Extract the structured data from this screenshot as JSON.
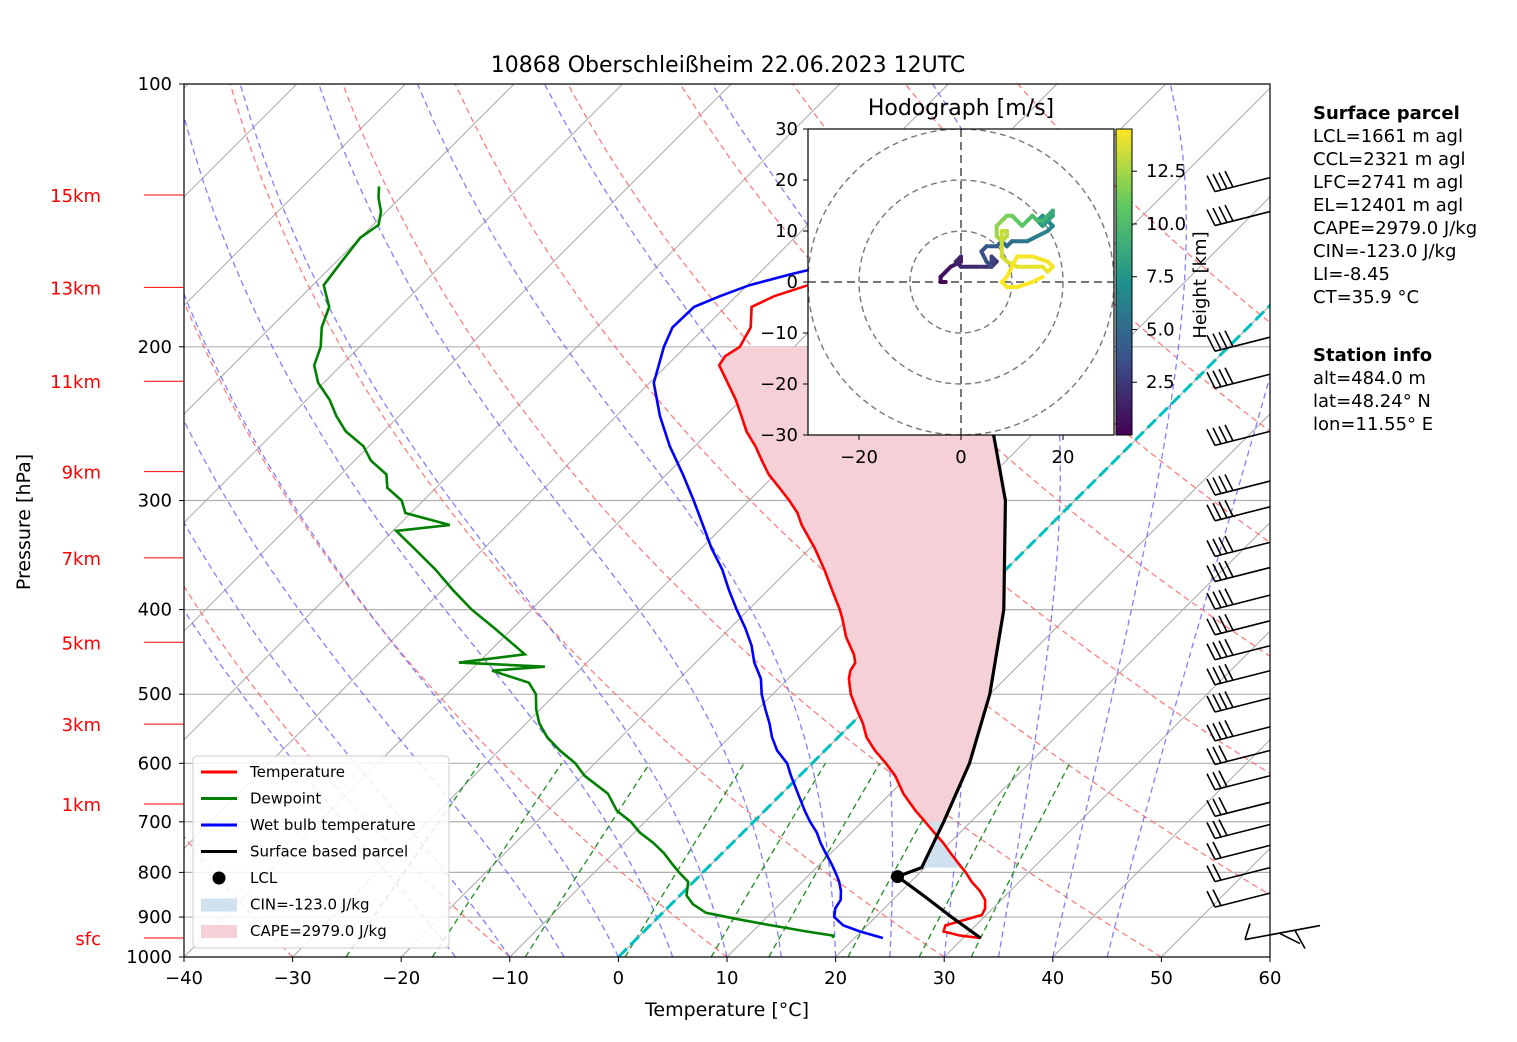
{
  "chart_data": {
    "type": "skew-t",
    "title": "10868 Oberschleißheim 22.06.2023 12UTC",
    "xlabel": "Temperature [°C]",
    "ylabel": "Pressure [hPa]",
    "xlim": [
      -40,
      60
    ],
    "ylim": [
      1000,
      100
    ],
    "x_ticks": [
      "−40",
      "−30",
      "−20",
      "−10",
      "0",
      "10",
      "20",
      "30",
      "40",
      "50",
      "60"
    ],
    "p_ticks": [
      "100",
      "200",
      "300",
      "400",
      "500",
      "600",
      "700",
      "800",
      "900",
      "1000"
    ],
    "height_labels": [
      {
        "label": "15km",
        "p": 134
      },
      {
        "label": "13km",
        "p": 171
      },
      {
        "label": "11km",
        "p": 219
      },
      {
        "label": "9km",
        "p": 278
      },
      {
        "label": "7km",
        "p": 349
      },
      {
        "label": "5km",
        "p": 436
      },
      {
        "label": "3km",
        "p": 541
      },
      {
        "label": "1km",
        "p": 668
      },
      {
        "label": "sfc",
        "p": 951
      }
    ],
    "temperature": [
      [
        951,
        31.6
      ],
      [
        945,
        29.5
      ],
      [
        935,
        27.6
      ],
      [
        920,
        27.2
      ],
      [
        905,
        28.6
      ],
      [
        895,
        29.6
      ],
      [
        880,
        29.3
      ],
      [
        860,
        28.5
      ],
      [
        840,
        27.2
      ],
      [
        820,
        25.6
      ],
      [
        800,
        24.2
      ],
      [
        780,
        22.6
      ],
      [
        760,
        21.0
      ],
      [
        740,
        19.4
      ],
      [
        720,
        17.6
      ],
      [
        700,
        15.8
      ],
      [
        680,
        13.9
      ],
      [
        650,
        11.2
      ],
      [
        620,
        8.8
      ],
      [
        600,
        6.8
      ],
      [
        580,
        4.6
      ],
      [
        560,
        2.6
      ],
      [
        540,
        1.0
      ],
      [
        520,
        -0.9
      ],
      [
        500,
        -2.8
      ],
      [
        480,
        -4.4
      ],
      [
        470,
        -5.0
      ],
      [
        460,
        -5.3
      ],
      [
        450,
        -6.2
      ],
      [
        430,
        -8.5
      ],
      [
        410,
        -10.5
      ],
      [
        400,
        -11.6
      ],
      [
        380,
        -14.1
      ],
      [
        360,
        -16.7
      ],
      [
        340,
        -19.6
      ],
      [
        320,
        -22.9
      ],
      [
        310,
        -24.4
      ],
      [
        300,
        -26.3
      ],
      [
        290,
        -28.4
      ],
      [
        280,
        -30.6
      ],
      [
        270,
        -32.5
      ],
      [
        260,
        -34.4
      ],
      [
        250,
        -36.6
      ],
      [
        240,
        -38.5
      ],
      [
        230,
        -40.5
      ],
      [
        220,
        -42.8
      ],
      [
        210,
        -45.2
      ],
      [
        205,
        -45.5
      ],
      [
        200,
        -45.0
      ],
      [
        190,
        -45.8
      ],
      [
        180,
        -47.6
      ],
      [
        175,
        -46.5
      ],
      [
        170,
        -44.4
      ],
      [
        165,
        -41.8
      ],
      [
        160,
        -38.2
      ],
      [
        155,
        -33.2
      ],
      [
        150,
        -31.6
      ],
      [
        146,
        -32.7
      ],
      [
        142,
        -33.0
      ],
      [
        139,
        -31.4
      ],
      [
        136,
        -31.6
      ],
      [
        133,
        -30.3
      ],
      [
        131,
        -29.4
      ]
    ],
    "dewpoint": [
      [
        951,
        18.0
      ],
      [
        945,
        17.8
      ],
      [
        935,
        15.0
      ],
      [
        920,
        11.2
      ],
      [
        905,
        7.5
      ],
      [
        890,
        4.0
      ],
      [
        870,
        2.0
      ],
      [
        850,
        0.6
      ],
      [
        820,
        -0.5
      ],
      [
        800,
        -2.2
      ],
      [
        780,
        -3.8
      ],
      [
        760,
        -5.4
      ],
      [
        740,
        -7.3
      ],
      [
        720,
        -9.5
      ],
      [
        700,
        -11.3
      ],
      [
        680,
        -13.6
      ],
      [
        650,
        -16.0
      ],
      [
        620,
        -19.8
      ],
      [
        600,
        -21.8
      ],
      [
        580,
        -24.4
      ],
      [
        560,
        -26.8
      ],
      [
        540,
        -28.8
      ],
      [
        520,
        -30.4
      ],
      [
        500,
        -31.8
      ],
      [
        485,
        -33.5
      ],
      [
        470,
        -38.0
      ],
      [
        465,
        -33.5
      ],
      [
        460,
        -41.8
      ],
      [
        450,
        -36.5
      ],
      [
        440,
        -38.2
      ],
      [
        420,
        -41.7
      ],
      [
        400,
        -45.5
      ],
      [
        380,
        -49.0
      ],
      [
        360,
        -52.5
      ],
      [
        340,
        -56.5
      ],
      [
        325,
        -59.7
      ],
      [
        320,
        -55.3
      ],
      [
        310,
        -60.5
      ],
      [
        300,
        -62.0
      ],
      [
        290,
        -64.5
      ],
      [
        280,
        -65.8
      ],
      [
        270,
        -68.5
      ],
      [
        260,
        -70.5
      ],
      [
        250,
        -73.5
      ],
      [
        240,
        -75.8
      ],
      [
        230,
        -77.9
      ],
      [
        220,
        -80.5
      ],
      [
        210,
        -82.5
      ],
      [
        200,
        -83.6
      ],
      [
        190,
        -85.3
      ],
      [
        180,
        -86.5
      ],
      [
        170,
        -89.0
      ],
      [
        160,
        -89.5
      ],
      [
        150,
        -90.0
      ],
      [
        145,
        -89.5
      ],
      [
        140,
        -90.5
      ],
      [
        135,
        -92.0
      ],
      [
        131,
        -93.0
      ]
    ],
    "wetbulb": [
      [
        951,
        22.6
      ],
      [
        935,
        19.9
      ],
      [
        920,
        17.8
      ],
      [
        900,
        16.2
      ],
      [
        880,
        15.5
      ],
      [
        860,
        15.2
      ],
      [
        840,
        14.4
      ],
      [
        820,
        13.4
      ],
      [
        800,
        12.2
      ],
      [
        780,
        10.9
      ],
      [
        760,
        9.5
      ],
      [
        740,
        8.1
      ],
      [
        720,
        6.8
      ],
      [
        700,
        5.2
      ],
      [
        680,
        3.7
      ],
      [
        650,
        1.5
      ],
      [
        620,
        -0.8
      ],
      [
        600,
        -2.3
      ],
      [
        580,
        -4.4
      ],
      [
        560,
        -6.1
      ],
      [
        540,
        -7.6
      ],
      [
        520,
        -9.3
      ],
      [
        500,
        -11.0
      ],
      [
        480,
        -12.5
      ],
      [
        460,
        -14.6
      ],
      [
        440,
        -16.4
      ],
      [
        420,
        -18.6
      ],
      [
        400,
        -21.1
      ],
      [
        380,
        -23.6
      ],
      [
        360,
        -26.1
      ],
      [
        340,
        -29.1
      ],
      [
        320,
        -32.0
      ],
      [
        300,
        -35.1
      ],
      [
        280,
        -38.5
      ],
      [
        260,
        -42.3
      ],
      [
        240,
        -46.0
      ],
      [
        220,
        -49.6
      ],
      [
        200,
        -52.0
      ],
      [
        190,
        -53.0
      ],
      [
        180,
        -52.9
      ],
      [
        175,
        -51.5
      ],
      [
        170,
        -49.8
      ],
      [
        165,
        -46.9
      ],
      [
        160,
        -43.4
      ],
      [
        155,
        -38.2
      ],
      [
        150,
        -36.2
      ],
      [
        146,
        -36.6
      ],
      [
        142,
        -36.6
      ],
      [
        139,
        -34.7
      ],
      [
        136,
        -34.2
      ],
      [
        133,
        -32.4
      ],
      [
        131,
        -31.6
      ]
    ],
    "parcel": [
      [
        951,
        31.6
      ],
      [
        900,
        27.0
      ],
      [
        850,
        22.4
      ],
      [
        809,
        18.3
      ],
      [
        790,
        19.7
      ],
      [
        700,
        17.5
      ],
      [
        600,
        14.5
      ],
      [
        500,
        10.0
      ],
      [
        400,
        3.5
      ],
      [
        300,
        -6.4
      ],
      [
        250,
        -13.9
      ],
      [
        200,
        -24.0
      ],
      [
        180,
        -29.2
      ],
      [
        160,
        -35.2
      ],
      [
        140,
        -42.2
      ],
      [
        131,
        -45.5
      ]
    ],
    "lcl": {
      "p": 809,
      "t": 18.3
    },
    "wind_levels_hpa": [
      940,
      845,
      790,
      745,
      705,
      665,
      620,
      580,
      545,
      505,
      470,
      440,
      412,
      385,
      358,
      335,
      305,
      285,
      250,
      215,
      195,
      140,
      128
    ],
    "legend": [
      {
        "label": "Temperature",
        "color": "#ff0000",
        "kind": "line"
      },
      {
        "label": "Dewpoint",
        "color": "#008000",
        "kind": "line"
      },
      {
        "label": "Wet bulb temperature",
        "color": "#0000ff",
        "kind": "line"
      },
      {
        "label": "Surface based parcel",
        "color": "#000000",
        "kind": "line"
      },
      {
        "label": "LCL",
        "color": "#000000",
        "kind": "dot"
      },
      {
        "label": "CIN=-123.0 J/kg",
        "color": "#cfe0ef",
        "kind": "patch"
      },
      {
        "label": "CAPE=2979.0 J/kg",
        "color": "#f5d0d6",
        "kind": "patch"
      }
    ],
    "legend_placement": "lower-left",
    "colors": {
      "temperature": "#ff0000",
      "dewpoint": "#008000",
      "wetbulb": "#0000ff",
      "parcel": "#000000",
      "zero_isotherm": "#00bfbf",
      "dry_adiabat": "#ff6666",
      "moist_adiabat": "#6a6aff",
      "mixing_ratio": "#1e8c1e",
      "cape_fill": "#f5d0d6",
      "cin_fill": "#cfe0ef"
    },
    "hodograph": {
      "title": "Hodograph [m/s]",
      "xlim": [
        -30,
        30
      ],
      "ylim": [
        -30,
        30
      ],
      "x_ticks": [
        "−20",
        "0",
        "20"
      ],
      "y_ticks": [
        "30",
        "20",
        "10",
        "0",
        "−10",
        "−20",
        "−30"
      ],
      "rings": [
        10,
        20,
        30
      ],
      "colorbar_label": "Height [km]",
      "colorbar_ticks": [
        "2.5",
        "5.0",
        "7.5",
        "10.0",
        "12.5"
      ],
      "colorbar_range": [
        0,
        14.5
      ],
      "path": [
        [
          -3,
          0,
          0.2
        ],
        [
          -4,
          0,
          0.4
        ],
        [
          -4,
          1,
          0.6
        ],
        [
          -3,
          2,
          0.8
        ],
        [
          -2,
          3,
          1.0
        ],
        [
          0,
          4,
          1.2
        ],
        [
          0,
          5,
          1.4
        ],
        [
          -1,
          4,
          1.6
        ],
        [
          0,
          3,
          1.8
        ],
        [
          3,
          3,
          2.0
        ],
        [
          6,
          3,
          2.3
        ],
        [
          7,
          4,
          2.6
        ],
        [
          6,
          5,
          2.9
        ],
        [
          6,
          3,
          3.2
        ],
        [
          5,
          4,
          3.5
        ],
        [
          4,
          6,
          3.8
        ],
        [
          5,
          7,
          4.1
        ],
        [
          7,
          7,
          4.4
        ],
        [
          8,
          8,
          4.7
        ],
        [
          9,
          7,
          5.0
        ],
        [
          10,
          8,
          5.3
        ],
        [
          11,
          8,
          5.6
        ],
        [
          13,
          8,
          5.9
        ],
        [
          15,
          9,
          6.2
        ],
        [
          17,
          10,
          6.5
        ],
        [
          18,
          11,
          6.8
        ],
        [
          17,
          12,
          7.1
        ],
        [
          16,
          13,
          7.4
        ],
        [
          15,
          12,
          7.7
        ],
        [
          16,
          11,
          8.0
        ],
        [
          17,
          12,
          8.3
        ],
        [
          18,
          13,
          8.6
        ],
        [
          18,
          14,
          8.9
        ],
        [
          17,
          13,
          9.2
        ],
        [
          16,
          12,
          9.5
        ],
        [
          15,
          12,
          9.8
        ],
        [
          14,
          13,
          10.1
        ],
        [
          13,
          12,
          10.4
        ],
        [
          12,
          11,
          10.7
        ],
        [
          11,
          12,
          11.0
        ],
        [
          10,
          13,
          11.3
        ],
        [
          9,
          13,
          11.6
        ],
        [
          8,
          12,
          11.9
        ],
        [
          7,
          11,
          12.2
        ],
        [
          7,
          9,
          12.5
        ],
        [
          8,
          8,
          12.8
        ],
        [
          9,
          9,
          13.0
        ],
        [
          9,
          10,
          13.1
        ],
        [
          8,
          10,
          13.3
        ],
        [
          8,
          7,
          13.4
        ],
        [
          8,
          5,
          13.6
        ],
        [
          9,
          4,
          13.7
        ],
        [
          11,
          3,
          13.9
        ],
        [
          14,
          3,
          14.0
        ],
        [
          16,
          3,
          14.1
        ],
        [
          17,
          2,
          14.2
        ],
        [
          18,
          3,
          14.3
        ],
        [
          17,
          4,
          14.3
        ],
        [
          14,
          5,
          14.4
        ],
        [
          11,
          5,
          14.4
        ],
        [
          10,
          3,
          14.5
        ],
        [
          9,
          1,
          14.5
        ],
        [
          8,
          0,
          14.5
        ],
        [
          9,
          -1,
          14.5
        ],
        [
          11,
          -1,
          14.5
        ],
        [
          14,
          0,
          14.5
        ],
        [
          16,
          1,
          14.5
        ]
      ]
    }
  },
  "info": {
    "surface_heading": "Surface parcel",
    "surface_lines": [
      "LCL=1661 m agl",
      "CCL=2321 m agl",
      "LFC=2741 m agl",
      "EL=12401 m agl",
      "CAPE=2979.0 J/kg",
      "CIN=-123.0 J/kg",
      "LI=-8.45",
      "CT=35.9 °C"
    ],
    "station_heading": "Station info",
    "station_lines": [
      "alt=484.0 m",
      "lat=48.24° N",
      "lon=11.55° E"
    ]
  }
}
